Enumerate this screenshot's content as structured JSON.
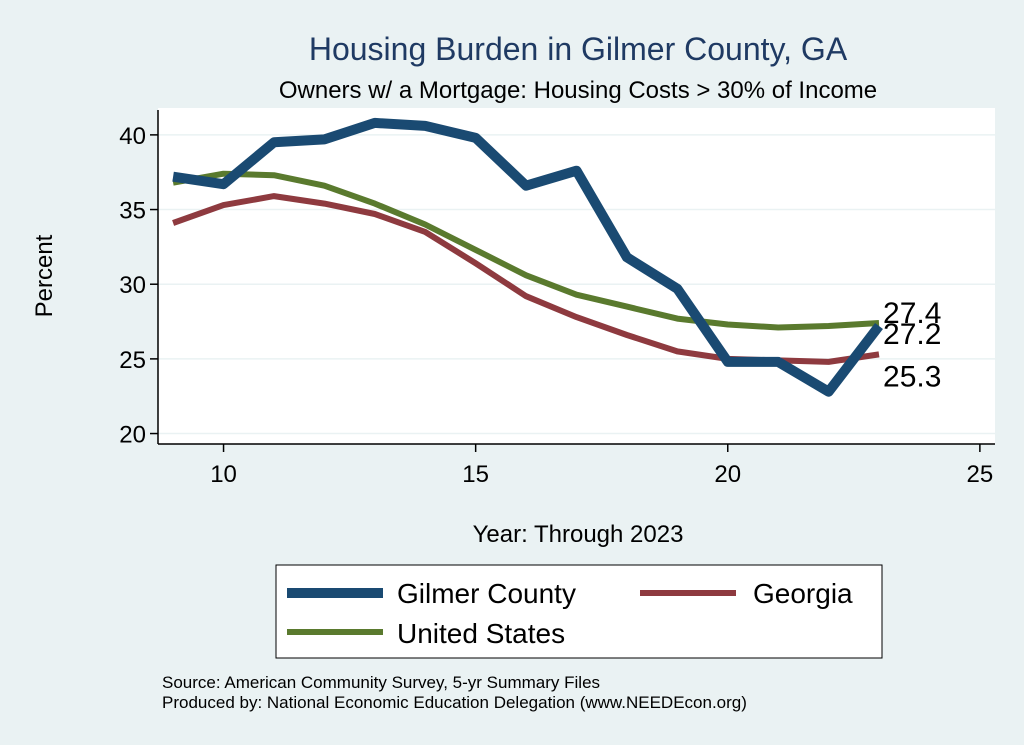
{
  "chart_data": {
    "type": "line",
    "title": "Housing Burden in Gilmer County, GA",
    "subtitle": "Owners w/ a Mortgage: Housing Costs > 30% of Income",
    "xlabel": "Year: Through 2023",
    "ylabel": "Percent",
    "xlim": [
      8.7,
      25.3
    ],
    "ylim": [
      19.3,
      41.8
    ],
    "xticks": [
      10,
      15,
      20,
      25
    ],
    "yticks": [
      20,
      25,
      30,
      35,
      40
    ],
    "grid": true,
    "legend_placement": "bottom",
    "x": [
      9,
      10,
      11,
      12,
      13,
      14,
      15,
      16,
      17,
      18,
      19,
      20,
      21,
      22,
      23
    ],
    "series": [
      {
        "name": "Gilmer County",
        "color": "#1a4a72",
        "values": [
          37.2,
          36.7,
          39.5,
          39.7,
          40.8,
          40.6,
          39.8,
          36.6,
          37.6,
          31.8,
          29.7,
          24.8,
          24.8,
          22.8,
          27.2
        ],
        "end_label": "27.2"
      },
      {
        "name": "Georgia",
        "color": "#8e3a3f",
        "values": [
          34.1,
          35.3,
          35.9,
          35.4,
          34.7,
          33.5,
          31.4,
          29.2,
          27.8,
          26.6,
          25.5,
          25.0,
          24.9,
          24.8,
          25.3
        ],
        "end_label": "25.3"
      },
      {
        "name": "United States",
        "color": "#5a7a2e",
        "values": [
          36.8,
          37.4,
          37.3,
          36.6,
          35.4,
          34.0,
          32.3,
          30.6,
          29.3,
          28.5,
          27.7,
          27.3,
          27.1,
          27.2,
          27.4
        ],
        "end_label": "27.4"
      }
    ]
  },
  "source": {
    "line1": "Source: American Community Survey, 5-yr Summary Files",
    "line2": "Produced by: National Economic Education Delegation (www.NEEDEcon.org)"
  }
}
